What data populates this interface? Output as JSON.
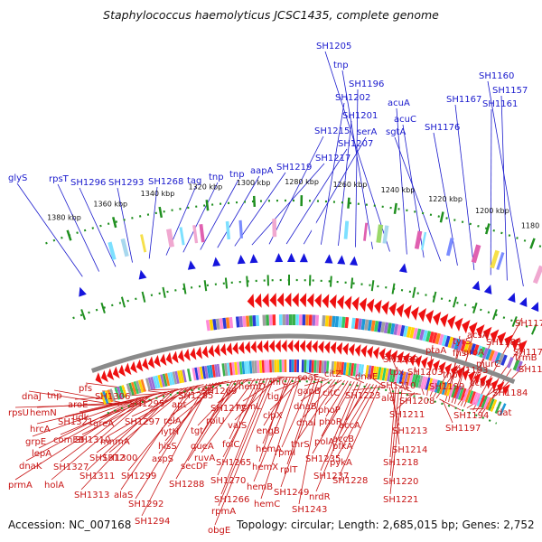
{
  "title": "Staphylococcus haemolyticus JCSC1435, complete genome",
  "footer": {
    "accession": "Accession: NC_007168",
    "summary": "Topology: circular; Length: 2,685,015 bp; Genes: 2,752"
  },
  "colors": {
    "rna_label": "#1a1acd",
    "gene_label": "#c81414",
    "backbone": "#8a8a8a",
    "tick": "#1f8f1f"
  },
  "scale_ticks": [
    "1380 kbp",
    "1360 kbp",
    "1340 kbp",
    "1320 kbp",
    "1300 kbp",
    "1280 kbp",
    "1260 kbp",
    "1240 kbp",
    "1220 kbp",
    "1200 kbp",
    "1180 kbp"
  ],
  "top_labels": [
    "glyS",
    "rpsT",
    "SH1296",
    "SH1293",
    "SH1268",
    "tag",
    "tnp",
    "tnp",
    "aapA",
    "SH1219",
    "SH1217",
    "SH1215",
    "SH1207",
    "serA",
    "SH1202",
    "SH1201",
    "SH1196",
    "tnp",
    "SH1205",
    "acuA",
    "acuC",
    "sgtA",
    "SH1176",
    "SH1167",
    "SH1161",
    "SH1157",
    "SH1160"
  ],
  "bottom_labels": [
    "dnaJ",
    "rpsU",
    "tnp",
    "hemN",
    "hrcA",
    "lepA",
    "grpE",
    "dnaK",
    "prmA",
    "SH1327",
    "holA",
    "comEB",
    "SH1321",
    "aroE",
    "pfs",
    "udk",
    "SH1310",
    "SH1311",
    "SH1313",
    "SH1306",
    "greA",
    "SH1312",
    "SH1300",
    "alaS",
    "mnmA",
    "SH1299",
    "SH1297",
    "SH1295",
    "SH1292",
    "SH1294",
    "aspS",
    "hisS",
    "relA",
    "lytH",
    "apt",
    "SH1285",
    "SH1288",
    "queA",
    "secDF",
    "tgt",
    "rpiU",
    "SH1272",
    "SH1269",
    "ruvA",
    "folC",
    "SH1270",
    "SH1265",
    "SH1266",
    "rpmA",
    "obgE",
    "valS",
    "hemL",
    "hemD",
    "hemX",
    "hemA",
    "engB",
    "hemB",
    "hemC",
    "clpX",
    "tig",
    "infC",
    "rpmI",
    "rplT",
    "SH1249",
    "SH1243",
    "coaE",
    "gapB",
    "dnaB",
    "dnaI",
    "thrS",
    "citC",
    "phoP",
    "phoR",
    "polA",
    "SH1235",
    "SH1237",
    "nrdR",
    "citZ",
    "accB",
    "accA",
    "pfkA",
    "pykA",
    "SH1228",
    "dnaE",
    "SH1223",
    "SH1213",
    "SH1214",
    "SH1218",
    "SH1220",
    "SH1221",
    "SH1209",
    "tpx",
    "SH1210",
    "SH1211",
    "SH1208",
    "ald",
    "SH1203",
    "ptaA",
    "SH1199",
    "tnp",
    "SH1193",
    "SH1194",
    "SH1197",
    "fhs",
    "tyrS",
    "aroA",
    "acsA",
    "ccpA",
    "murC",
    "SH1183",
    "SH1184",
    "dat",
    "SH1177",
    "SH1178",
    "SH1181",
    "trmB"
  ]
}
